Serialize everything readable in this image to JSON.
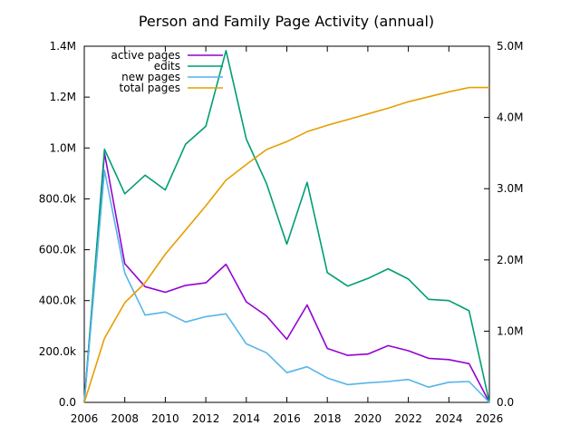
{
  "chart_data": {
    "type": "line",
    "title": "Person and Family Page Activity (annual)",
    "x": [
      2006,
      2007,
      2008,
      2009,
      2010,
      2011,
      2012,
      2013,
      2014,
      2015,
      2016,
      2017,
      2018,
      2019,
      2020,
      2021,
      2022,
      2023,
      2024,
      2025,
      2026
    ],
    "x_ticks": [
      2006,
      2008,
      2010,
      2012,
      2014,
      2016,
      2018,
      2020,
      2022,
      2024,
      2026
    ],
    "xlim": [
      2006,
      2026
    ],
    "y_left": {
      "lim": [
        0,
        1400000
      ],
      "ticks": [
        0,
        200000,
        400000,
        600000,
        800000,
        1000000,
        1200000,
        1400000
      ],
      "tick_labels": [
        "0.0",
        "200.0k",
        "400.0k",
        "600.0k",
        "800.0k",
        "1.0M",
        "1.2M",
        "1.4M"
      ]
    },
    "y_right": {
      "lim": [
        0,
        5000000
      ],
      "ticks": [
        0,
        1000000,
        2000000,
        3000000,
        4000000,
        5000000
      ],
      "tick_labels": [
        "0.0",
        "1.0M",
        "2.0M",
        "3.0M",
        "4.0M",
        "5.0M"
      ]
    },
    "grid": false,
    "legend_position": "top-left",
    "series": [
      {
        "name": "active pages",
        "color": "#9400d3",
        "axis": "left",
        "values": [
          0,
          980000,
          545000,
          455000,
          433000,
          460000,
          470000,
          543000,
          395000,
          340000,
          248000,
          383000,
          212000,
          185000,
          190000,
          223000,
          203000,
          173000,
          168000,
          152000,
          0
        ]
      },
      {
        "name": "edits",
        "color": "#009e73",
        "axis": "left",
        "values": [
          0,
          995000,
          820000,
          893000,
          835000,
          1015000,
          1085000,
          1383000,
          1035000,
          860000,
          622000,
          865000,
          510000,
          457000,
          487000,
          525000,
          485000,
          405000,
          400000,
          360000,
          0
        ]
      },
      {
        "name": "new pages",
        "color": "#56b4e9",
        "axis": "left",
        "values": [
          0,
          912000,
          508000,
          343000,
          355000,
          316000,
          337000,
          348000,
          230000,
          195000,
          117000,
          140000,
          96000,
          70000,
          77000,
          82000,
          90000,
          60000,
          79000,
          82000,
          0
        ]
      },
      {
        "name": "total pages",
        "color": "#e69f00",
        "axis": "right",
        "values": [
          0,
          900000,
          1400000,
          1680000,
          2080000,
          2420000,
          2760000,
          3120000,
          3340000,
          3550000,
          3660000,
          3800000,
          3890000,
          3970000,
          4050000,
          4130000,
          4220000,
          4290000,
          4360000,
          4420000,
          4420000
        ]
      }
    ]
  }
}
